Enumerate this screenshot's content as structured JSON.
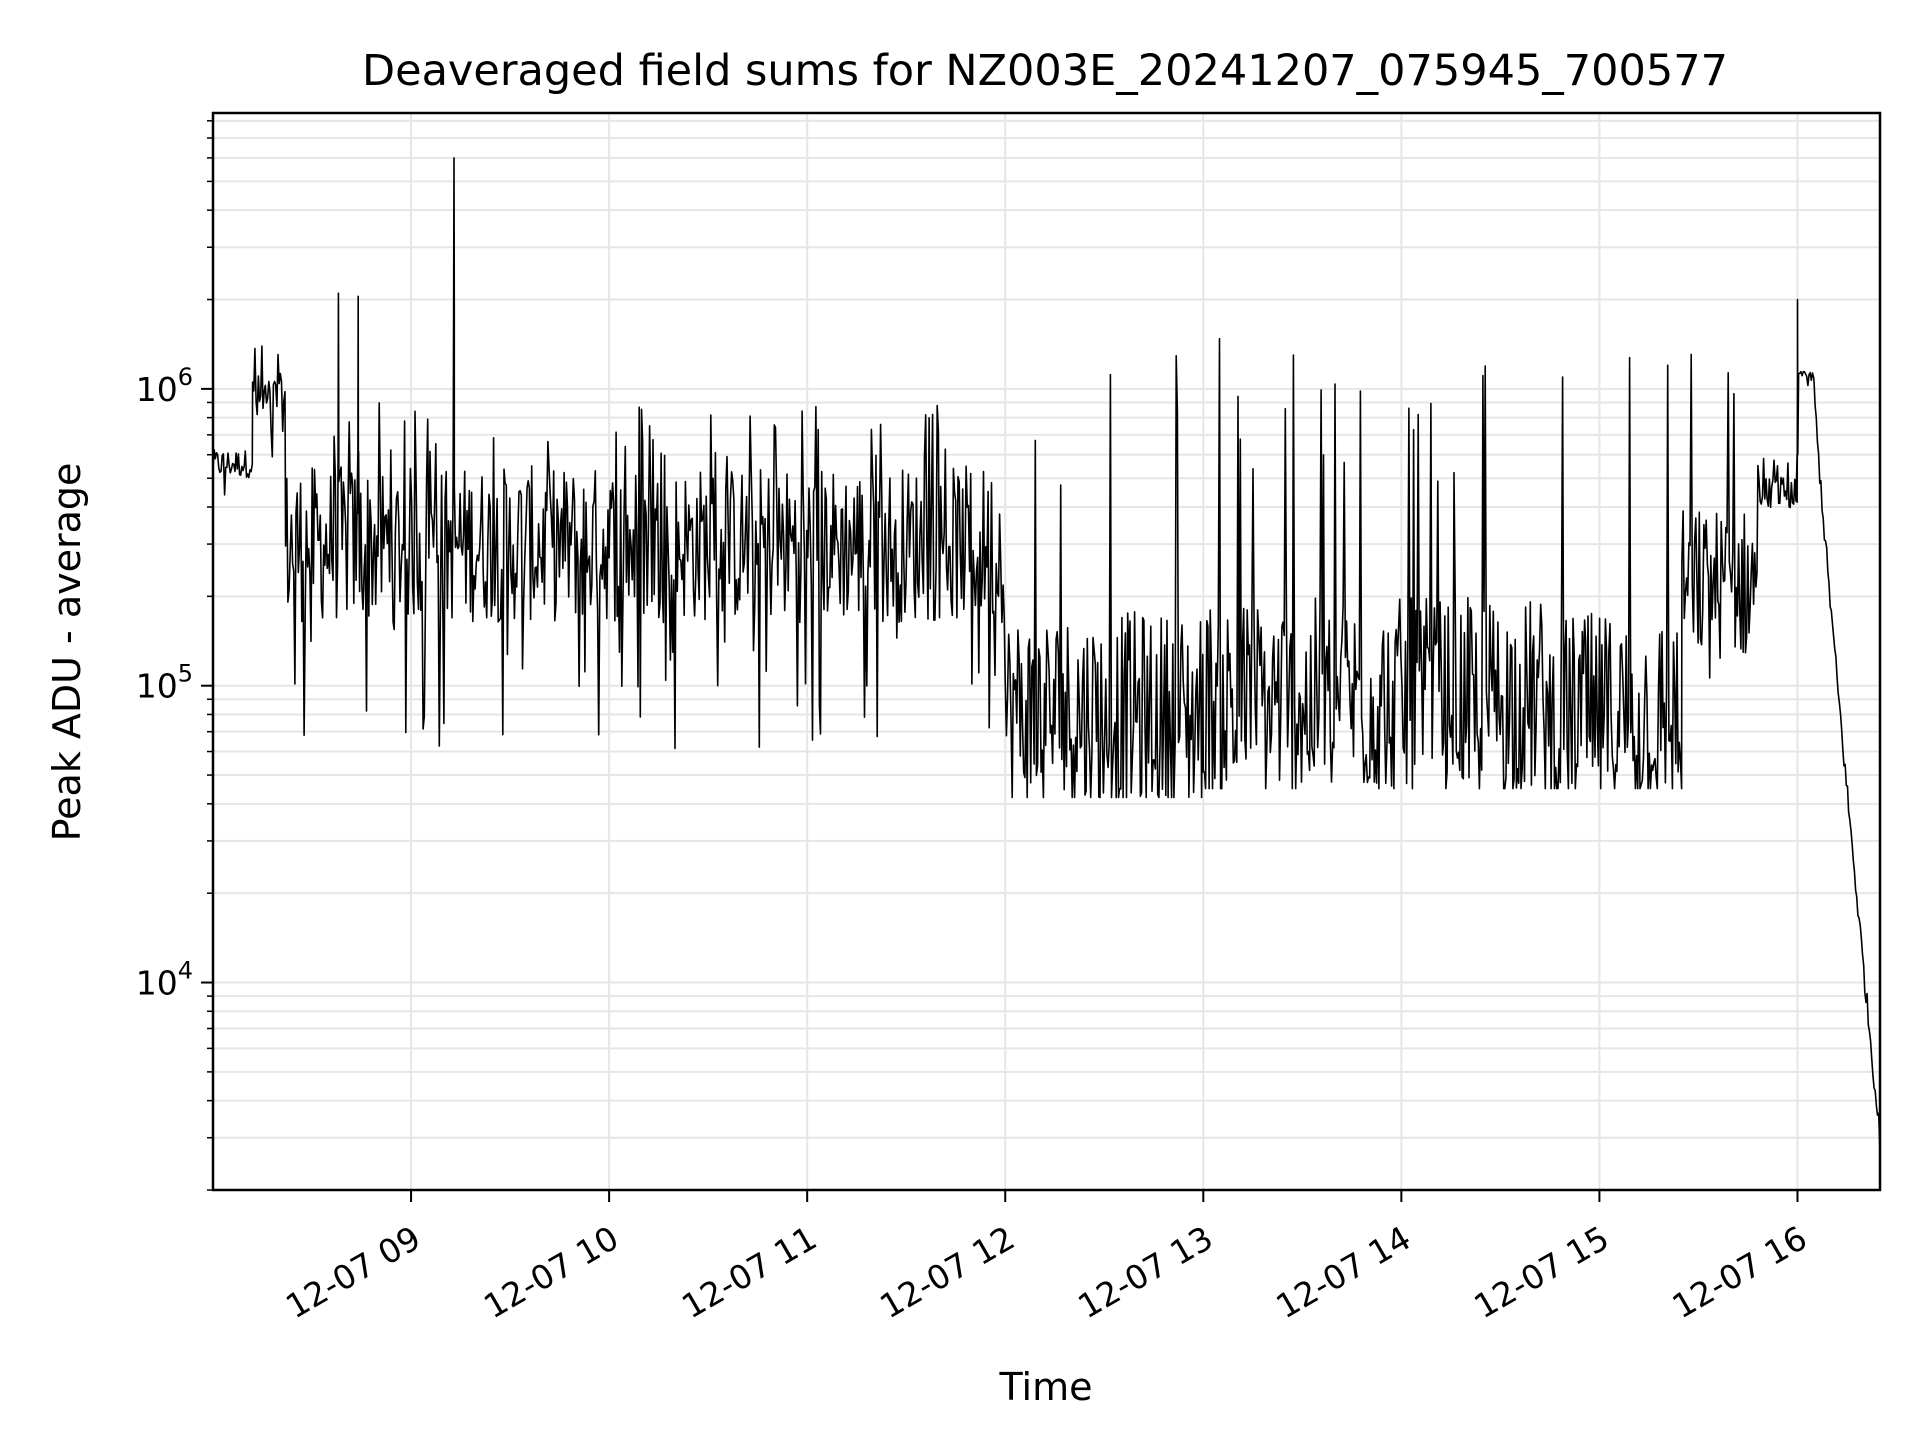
{
  "chart_data": {
    "type": "line",
    "title": "Deaveraged field sums for NZ003E_20241207_075945_700577",
    "xlabel": "Time",
    "ylabel": "Peak ADU - average",
    "y_scale": "log",
    "ylim": [
      2000,
      8500000
    ],
    "xlim": [
      "2024-12-07 08:00",
      "2024-12-07 16:25"
    ],
    "x_ticks": [
      {
        "t": "2024-12-07 09:00",
        "label": "12-07 09"
      },
      {
        "t": "2024-12-07 10:00",
        "label": "12-07 10"
      },
      {
        "t": "2024-12-07 11:00",
        "label": "12-07 11"
      },
      {
        "t": "2024-12-07 12:00",
        "label": "12-07 12"
      },
      {
        "t": "2024-12-07 13:00",
        "label": "12-07 13"
      },
      {
        "t": "2024-12-07 14:00",
        "label": "12-07 14"
      },
      {
        "t": "2024-12-07 15:00",
        "label": "12-07 15"
      },
      {
        "t": "2024-12-07 16:00",
        "label": "12-07 16"
      }
    ],
    "y_ticks": [
      {
        "value": 10000,
        "base": "10",
        "exp": "4"
      },
      {
        "value": 100000,
        "base": "10",
        "exp": "5"
      },
      {
        "value": 1000000,
        "base": "10",
        "exp": "6"
      }
    ],
    "grid": "major and minor",
    "line_color": "#000000",
    "grid_color": "#e6e6e6",
    "segments": [
      {
        "start": "2024-12-07 08:00",
        "end": "2024-12-07 08:12",
        "base": 560000,
        "low": 400000,
        "high": 650000
      },
      {
        "start": "2024-12-07 08:12",
        "end": "2024-12-07 08:22",
        "base": 900000,
        "low": 550000,
        "high": 1500000
      },
      {
        "start": "2024-12-07 08:22",
        "end": "2024-12-07 12:00",
        "base": 300000,
        "low": 60000,
        "high": 900000
      },
      {
        "start": "2024-12-07 12:00",
        "end": "2024-12-07 13:00",
        "base": 80000,
        "low": 42000,
        "high": 1500000
      },
      {
        "start": "2024-12-07 13:00",
        "end": "2024-12-07 14:45",
        "base": 90000,
        "low": 45000,
        "high": 1500000
      },
      {
        "start": "2024-12-07 14:45",
        "end": "2024-12-07 15:25",
        "base": 80000,
        "low": 45000,
        "high": 1500000
      },
      {
        "start": "2024-12-07 15:25",
        "end": "2024-12-07 15:48",
        "base": 220000,
        "low": 100000,
        "high": 1400000
      },
      {
        "start": "2024-12-07 15:48",
        "end": "2024-12-07 16:00",
        "base": 450000,
        "low": 350000,
        "high": 600000
      },
      {
        "start": "2024-12-07 16:00",
        "end": "2024-12-07 16:05",
        "base": 1100000,
        "low": 1000000,
        "high": 1200000
      },
      {
        "start": "2024-12-07 16:05",
        "end": "2024-12-07 16:25",
        "base": 3000,
        "low": 3000,
        "high": 1000000
      }
    ],
    "annotated_peaks": [
      {
        "t": "2024-12-07 08:38",
        "value": 2100000
      },
      {
        "t": "2024-12-07 08:44",
        "value": 2050000
      },
      {
        "t": "2024-12-07 09:13",
        "value": 6000000
      },
      {
        "t": "2024-12-07 16:00",
        "value": 2000000
      }
    ]
  }
}
